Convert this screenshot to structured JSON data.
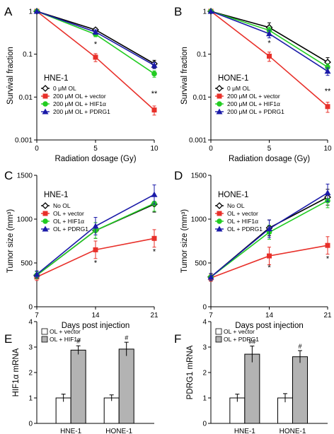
{
  "chart_data": [
    {
      "panel": "A",
      "type": "line",
      "title": "HNE-1",
      "xlabel": "Radiation dosage (Gy)",
      "ylabel": "Survival fraction",
      "yscale": "log",
      "xlim": [
        0,
        10
      ],
      "ylim": [
        0.001,
        1
      ],
      "x_ticks": [
        "0",
        "5",
        "10"
      ],
      "y_ticks": [
        "0.001",
        "0.01",
        "0.1",
        "1"
      ],
      "legend_position": "bottom-left",
      "x": [
        0,
        5,
        10
      ],
      "series": [
        {
          "name": "0 μM OL",
          "color": "#000000",
          "marker": "open-diamond",
          "values": [
            1,
            0.37,
            0.06
          ],
          "err": [
            0,
            0.04,
            0.012
          ]
        },
        {
          "name": "200 μM OL + vector",
          "color": "#e8302a",
          "marker": "square",
          "values": [
            1,
            0.085,
            0.005
          ],
          "err": [
            0,
            0.018,
            0.0012
          ]
        },
        {
          "name": "200 μM OL + HIF1α",
          "color": "#22cc22",
          "marker": "circle",
          "values": [
            1,
            0.29,
            0.035
          ],
          "err": [
            0,
            0.035,
            0.006
          ]
        },
        {
          "name": "200 μM OL + PDRG1",
          "color": "#1a1aa8",
          "marker": "triangle",
          "values": [
            1,
            0.33,
            0.055
          ],
          "err": [
            0,
            0.04,
            0.009
          ]
        }
      ],
      "annotations": [
        {
          "x": 5,
          "y": 0.15,
          "text": "*"
        },
        {
          "x": 10,
          "y": 0.0105,
          "text": "**"
        }
      ]
    },
    {
      "panel": "B",
      "type": "line",
      "title": "HONE-1",
      "xlabel": "Radiation dosage (Gy)",
      "ylabel": "Survival fraction",
      "yscale": "log",
      "xlim": [
        0,
        10
      ],
      "ylim": [
        0.001,
        1
      ],
      "x_ticks": [
        "0",
        "5",
        "10"
      ],
      "y_ticks": [
        "0.001",
        "0.01",
        "0.1",
        "1"
      ],
      "legend_position": "bottom-left",
      "x": [
        0,
        5,
        10
      ],
      "series": [
        {
          "name": "0 μM OL",
          "color": "#000000",
          "marker": "open-diamond",
          "values": [
            1,
            0.42,
            0.065
          ],
          "err": [
            0,
            0.12,
            0.018
          ]
        },
        {
          "name": "200 μM OL + vector",
          "color": "#e8302a",
          "marker": "square",
          "values": [
            1,
            0.09,
            0.006
          ],
          "err": [
            0,
            0.022,
            0.0016
          ]
        },
        {
          "name": "200 μM OL + HIF1α",
          "color": "#22cc22",
          "marker": "circle",
          "values": [
            1,
            0.36,
            0.05
          ],
          "err": [
            0,
            0.07,
            0.01
          ]
        },
        {
          "name": "200 μM OL + PDRG1",
          "color": "#1a1aa8",
          "marker": "triangle",
          "values": [
            1,
            0.3,
            0.04
          ],
          "err": [
            0,
            0.06,
            0.008
          ]
        }
      ],
      "annotations": [
        {
          "x": 5,
          "y": 0.16,
          "text": "*"
        },
        {
          "x": 10,
          "y": 0.012,
          "text": "**"
        }
      ]
    },
    {
      "panel": "C",
      "type": "line",
      "title": "HNE-1",
      "xlabel": "Days post injection",
      "ylabel": "Tumor size (mm³)",
      "xlim": [
        7,
        21
      ],
      "ylim": [
        0,
        1500
      ],
      "x_ticks": [
        "7",
        "14",
        "21"
      ],
      "y_ticks": [
        "0",
        "500",
        "1000",
        "1500"
      ],
      "legend_position": "top-left",
      "x": [
        7,
        14,
        21
      ],
      "series": [
        {
          "name": "No OL",
          "color": "#000000",
          "marker": "open-diamond",
          "values": [
            360,
            870,
            1170
          ],
          "err": [
            40,
            90,
            90
          ]
        },
        {
          "name": "OL + vector",
          "color": "#e8302a",
          "marker": "square",
          "values": [
            340,
            650,
            780
          ],
          "err": [
            40,
            100,
            100
          ]
        },
        {
          "name": "OL + HIF1α",
          "color": "#22cc22",
          "marker": "circle",
          "values": [
            360,
            870,
            1180
          ],
          "err": [
            40,
            90,
            90
          ]
        },
        {
          "name": "OL + PDRG1",
          "color": "#1a1aa8",
          "marker": "triangle",
          "values": [
            370,
            920,
            1280
          ],
          "err": [
            40,
            100,
            110
          ]
        }
      ],
      "annotations": [
        {
          "x": 14,
          "y": 470,
          "text": "*"
        },
        {
          "x": 21,
          "y": 600,
          "text": "*"
        }
      ]
    },
    {
      "panel": "D",
      "type": "line",
      "title": "HONE-1",
      "xlabel": "Days post injection",
      "ylabel": "Tumor size (mm³)",
      "xlim": [
        7,
        21
      ],
      "ylim": [
        0,
        1500
      ],
      "x_ticks": [
        "7",
        "14",
        "21"
      ],
      "y_ticks": [
        "0",
        "500",
        "1000",
        "1500"
      ],
      "legend_position": "top-left",
      "x": [
        7,
        14,
        21
      ],
      "series": [
        {
          "name": "No OL",
          "color": "#000000",
          "marker": "open-diamond",
          "values": [
            340,
            900,
            1250
          ],
          "err": [
            40,
            90,
            90
          ]
        },
        {
          "name": "OL + vector",
          "color": "#e8302a",
          "marker": "square",
          "values": [
            330,
            580,
            700
          ],
          "err": [
            40,
            100,
            100
          ]
        },
        {
          "name": "OL + HIF1α",
          "color": "#22cc22",
          "marker": "circle",
          "values": [
            340,
            850,
            1210
          ],
          "err": [
            40,
            80,
            80
          ]
        },
        {
          "name": "OL + PDRG1",
          "color": "#1a1aa8",
          "marker": "triangle",
          "values": [
            340,
            890,
            1300
          ],
          "err": [
            40,
            100,
            100
          ]
        }
      ],
      "annotations": [
        {
          "x": 14,
          "y": 420,
          "text": "*"
        },
        {
          "x": 21,
          "y": 520,
          "text": "*"
        }
      ]
    },
    {
      "panel": "E",
      "type": "bar",
      "ylabel": "HIF1α mRNA",
      "ylim": [
        0,
        4
      ],
      "y_ticks": [
        "0",
        "1",
        "2",
        "3",
        "4"
      ],
      "categories": [
        "HNE-1",
        "HONE-1"
      ],
      "legend_position": "top-left",
      "series": [
        {
          "name": "OL + vector",
          "color": "#ffffff",
          "values": [
            1.0,
            1.0
          ],
          "err": [
            0.15,
            0.12
          ],
          "sig": [
            "",
            ""
          ]
        },
        {
          "name": "OL + HIF1α",
          "color": "#b3b3b3",
          "values": [
            2.88,
            2.92
          ],
          "err": [
            0.17,
            0.27
          ],
          "sig": [
            "#",
            "#"
          ]
        }
      ]
    },
    {
      "panel": "F",
      "type": "bar",
      "ylabel": "PDRG1 mRNA",
      "ylim": [
        0,
        4
      ],
      "y_ticks": [
        "0",
        "1",
        "2",
        "3",
        "4"
      ],
      "categories": [
        "HNE-1",
        "HONE-1"
      ],
      "legend_position": "top-left",
      "series": [
        {
          "name": "OL + vector",
          "color": "#ffffff",
          "values": [
            1.0,
            1.0
          ],
          "err": [
            0.15,
            0.17
          ],
          "sig": [
            "",
            ""
          ]
        },
        {
          "name": "OL + PDRG1",
          "color": "#b3b3b3",
          "values": [
            2.72,
            2.62
          ],
          "err": [
            0.32,
            0.24
          ],
          "sig": [
            "##",
            "#"
          ]
        }
      ]
    }
  ]
}
